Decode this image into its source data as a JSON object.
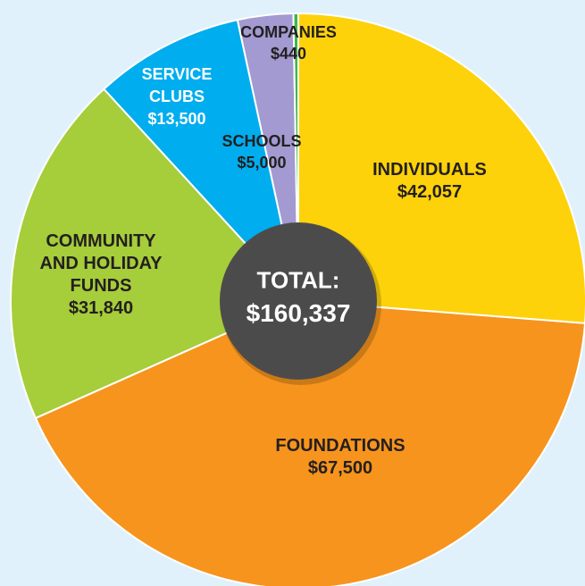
{
  "chart_data": {
    "type": "pie",
    "categories": [
      "INDIVIDUALS",
      "FOUNDATIONS",
      "COMMUNITY AND HOLIDAY FUNDS",
      "SERVICE CLUBS",
      "SCHOOLS",
      "COMPANIES"
    ],
    "values": [
      42057,
      67500,
      31840,
      13500,
      5000,
      440
    ],
    "value_labels": [
      "$42,057",
      "$67,500",
      "$31,840",
      "$13,500",
      "$5,000",
      "$440"
    ],
    "colors": [
      "#fdd20a",
      "#f7941d",
      "#a6cd3a",
      "#00adee",
      "#a29ad0",
      "#3cb64b"
    ],
    "center_text": [
      "TOTAL:",
      "$160,337"
    ]
  }
}
